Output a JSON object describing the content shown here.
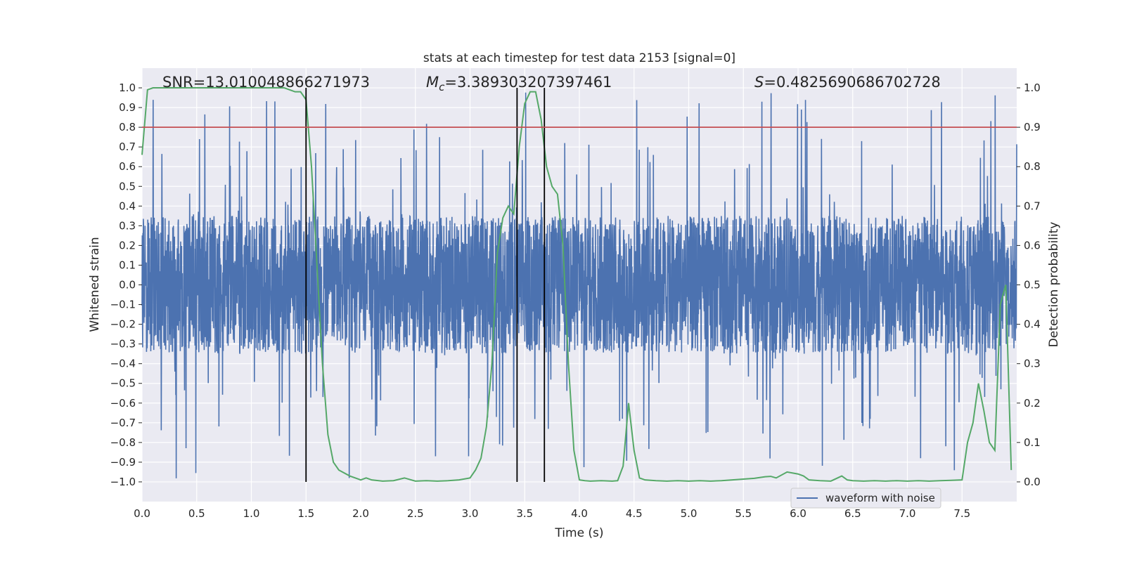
{
  "chart_data": {
    "type": "line",
    "title": "stats at each timestep for test data 2153 [signal=0]",
    "xlabel": "Time (s)",
    "ylabel": "Whitened strain",
    "y2label": "Detection probability",
    "xlim": [
      0.0,
      8.0
    ],
    "ylim": [
      -1.1,
      1.1
    ],
    "y2lim": [
      -0.05,
      1.05
    ],
    "xticks": [
      "0.0",
      "0.5",
      "1.0",
      "1.5",
      "2.0",
      "2.5",
      "3.0",
      "3.5",
      "4.0",
      "4.5",
      "5.0",
      "5.5",
      "6.0",
      "6.5",
      "7.0",
      "7.5"
    ],
    "yticks": [
      "1.0",
      "0.9",
      "0.8",
      "0.7",
      "0.6",
      "0.5",
      "0.4",
      "0.3",
      "0.2",
      "0.1",
      "0.0",
      "−0.1",
      "−0.2",
      "−0.3",
      "−0.4",
      "−0.5",
      "−0.6",
      "−0.7",
      "−0.8",
      "−0.9",
      "−1.0"
    ],
    "y2ticks": [
      "1.0",
      "0.9",
      "0.8",
      "0.7",
      "0.6",
      "0.5",
      "0.4",
      "0.3",
      "0.2",
      "0.1",
      "0.0"
    ],
    "annotations": {
      "snr": "SNR=13.010048866271973",
      "mc_symbol": "M",
      "mc_sub": "c",
      "mc_value": "=3.389303207397461",
      "s_symbol": "S",
      "s_value": "=0.4825690686702728"
    },
    "threshold": {
      "y2": 0.9,
      "color": "#c44e52"
    },
    "vertical_lines": [
      1.5,
      3.43,
      3.68
    ],
    "legend": {
      "label": "waveform with noise",
      "position": "lower-right"
    },
    "series": [
      {
        "name": "waveform with noise",
        "axis": "left",
        "color": "#4c72b0",
        "kind": "noise",
        "samples": 4096,
        "typical_envelope": 0.35,
        "peak_range": [
          -1.0,
          1.0
        ]
      },
      {
        "name": "detection probability",
        "axis": "right",
        "color": "#55a868",
        "x": [
          0.0,
          0.05,
          0.1,
          0.2,
          0.3,
          0.4,
          0.5,
          0.6,
          0.7,
          0.8,
          0.9,
          1.0,
          1.1,
          1.2,
          1.3,
          1.4,
          1.45,
          1.5,
          1.55,
          1.6,
          1.65,
          1.7,
          1.75,
          1.8,
          1.9,
          2.0,
          2.05,
          2.1,
          2.2,
          2.3,
          2.4,
          2.5,
          2.6,
          2.7,
          2.8,
          2.9,
          3.0,
          3.05,
          3.1,
          3.15,
          3.2,
          3.25,
          3.3,
          3.35,
          3.4,
          3.45,
          3.5,
          3.55,
          3.6,
          3.65,
          3.7,
          3.75,
          3.8,
          3.85,
          3.9,
          3.95,
          4.0,
          4.05,
          4.1,
          4.2,
          4.3,
          4.35,
          4.4,
          4.45,
          4.5,
          4.55,
          4.6,
          4.7,
          4.8,
          4.9,
          5.0,
          5.1,
          5.2,
          5.3,
          5.4,
          5.5,
          5.6,
          5.7,
          5.75,
          5.8,
          5.9,
          6.0,
          6.05,
          6.1,
          6.2,
          6.3,
          6.4,
          6.45,
          6.5,
          6.6,
          6.7,
          6.8,
          6.9,
          7.0,
          7.1,
          7.2,
          7.3,
          7.4,
          7.5,
          7.55,
          7.6,
          7.65,
          7.7,
          7.75,
          7.8,
          7.85,
          7.9,
          7.95
        ],
        "values": [
          0.83,
          0.995,
          1.0,
          1.0,
          1.0,
          1.0,
          1.0,
          1.0,
          1.0,
          1.0,
          1.0,
          1.0,
          1.0,
          1.0,
          1.0,
          0.99,
          0.99,
          0.97,
          0.8,
          0.55,
          0.3,
          0.12,
          0.05,
          0.03,
          0.015,
          0.005,
          0.01,
          0.005,
          0.002,
          0.003,
          0.01,
          0.002,
          0.003,
          0.002,
          0.003,
          0.005,
          0.01,
          0.03,
          0.06,
          0.14,
          0.3,
          0.58,
          0.67,
          0.7,
          0.68,
          0.85,
          0.96,
          0.99,
          0.99,
          0.92,
          0.8,
          0.75,
          0.73,
          0.6,
          0.3,
          0.08,
          0.005,
          0.003,
          0.002,
          0.003,
          0.002,
          0.003,
          0.04,
          0.2,
          0.08,
          0.01,
          0.005,
          0.003,
          0.002,
          0.003,
          0.002,
          0.003,
          0.002,
          0.003,
          0.005,
          0.007,
          0.009,
          0.013,
          0.014,
          0.01,
          0.025,
          0.02,
          0.015,
          0.005,
          0.003,
          0.002,
          0.015,
          0.005,
          0.003,
          0.002,
          0.003,
          0.002,
          0.003,
          0.002,
          0.003,
          0.002,
          0.003,
          0.004,
          0.005,
          0.1,
          0.15,
          0.25,
          0.18,
          0.1,
          0.08,
          0.45,
          0.5,
          0.03
        ]
      }
    ]
  }
}
